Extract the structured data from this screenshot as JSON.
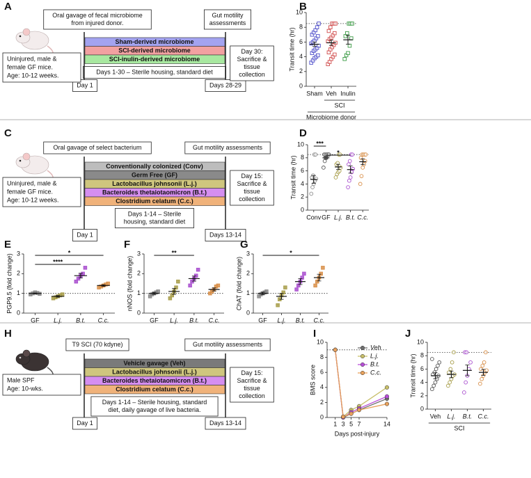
{
  "panel_labels": [
    "A",
    "B",
    "C",
    "D",
    "E",
    "F",
    "G",
    "H",
    "I",
    "J"
  ],
  "diagrams": [
    {
      "top_left": [
        "Oral gavage of fecal microbiome",
        "from injured donor."
      ],
      "top_right": [
        "Gut motility",
        "assessments"
      ],
      "mouse_box": [
        "Uninjured, male &",
        "female GF mice.",
        "Age: 10-12 weeks."
      ],
      "bars": [
        {
          "label": "Sham-derived microbiome",
          "color": "#a3a3f0"
        },
        {
          "label": "SCI-derived microbiome",
          "color": "#f2a1a1"
        },
        {
          "label": "SCI-inulin-derived microbiome",
          "color": "#a8e8a0"
        }
      ],
      "housing": [
        "Days 1-30 – Sterile housing, standard diet"
      ],
      "start": "Day 1",
      "end": "Days 28-29",
      "final": [
        "Day 30:",
        "Sacrifice &",
        "tissue",
        "collection"
      ]
    },
    {
      "top_left": [
        "Oral gavage of select bacterium"
      ],
      "top_right": [
        "Gut motility assessments"
      ],
      "mouse_box": [
        "Uninjured, male &",
        "female GF mice.",
        "Age: 10-12 weeks."
      ],
      "bars": [
        {
          "label": "Conventionally colonized (Conv)",
          "color": "#bdbdbd"
        },
        {
          "label": "Germ Free (GF)",
          "color": "#8a8a8a"
        },
        {
          "label": "Lactobacillus johnsonii (L.j.)",
          "color": "#cfc67e"
        },
        {
          "label": "Bacteroides thetaiotaomicron (B.t.)",
          "color": "#d58ef0"
        },
        {
          "label": "Clostridium celatum (C.c.)",
          "color": "#f0b27a"
        }
      ],
      "housing": [
        "Days 1-14 – Sterile",
        "housing, standard diet"
      ],
      "start": "Day 1",
      "end": "Days 13-14",
      "final": [
        "Day 15:",
        "Sacrifice &",
        "tissue",
        "collection"
      ]
    },
    {
      "top_left": [
        "T9 SCI (70 kdyne)"
      ],
      "top_right": [
        "Gut motility assessments"
      ],
      "mouse_box": [
        "Male SPF",
        "Age: 10-wks."
      ],
      "bars": [
        {
          "label": "Vehicle gavage (Veh)",
          "color": "#7a7a7a"
        },
        {
          "label": "Lactobacillus johnsonii (L.j.)",
          "color": "#cfc67e"
        },
        {
          "label": "Bacteroides thetaiotaomicron (B.t.)",
          "color": "#d58ef0"
        },
        {
          "label": "Clostridium celatum (C.c.)",
          "color": "#f0b27a"
        }
      ],
      "housing": [
        "Days 1-14 – Sterile housing, standard",
        "diet, daily gavage of live bacteria."
      ],
      "start": "Day 1",
      "end": "Days 13-14",
      "final": [
        "Day 15:",
        "Sacrifice &",
        "tissue",
        "collection"
      ]
    }
  ],
  "chart_data": [
    {
      "type": "strip",
      "y_label": "Transit time (hr)",
      "ylim": [
        0,
        10
      ],
      "yticks": [
        0,
        2,
        4,
        6,
        8,
        10
      ],
      "reference_line": 8.5,
      "marker": "square",
      "filled": false,
      "groups": [
        {
          "label": "Sham",
          "color": "#4a4ac8",
          "values": [
            3.2,
            3.5,
            3.8,
            4,
            4.2,
            4.5,
            4.8,
            5,
            5.2,
            5.5,
            5.8,
            6,
            6.2,
            6.5,
            6.8,
            7,
            7.3,
            7.6,
            8,
            8.5
          ],
          "mean": 5.7,
          "sem": 0.3
        },
        {
          "label": "Veh",
          "color": "#d04a4a",
          "values": [
            3,
            3.3,
            3.7,
            4,
            4.3,
            4.6,
            5,
            5.3,
            5.6,
            5.9,
            6.1,
            6.4,
            6.6,
            6.9,
            7.2,
            7.5,
            8,
            8.5,
            8.5,
            8.5
          ],
          "mean": 5.9,
          "sem": 0.35
        },
        {
          "label": "Inulin",
          "color": "#3a9a44",
          "values": [
            3.7,
            4.2,
            4.5,
            5.5,
            6.5,
            6.8,
            7.2,
            8.5,
            8.5,
            8.5
          ],
          "mean": 6.3,
          "sem": 0.6
        }
      ],
      "group_labels": [
        {
          "label": "SCI",
          "from": 1,
          "to": 2
        },
        {
          "label": "Microbiome donor",
          "from": 0,
          "to": 2
        }
      ]
    },
    {
      "type": "strip",
      "y_label": "Transit time (hr)",
      "ylim": [
        0,
        10
      ],
      "yticks": [
        0,
        2,
        4,
        6,
        8,
        10
      ],
      "reference_line": 8.5,
      "marker": "circle",
      "filled": false,
      "groups": [
        {
          "label": "Conv",
          "color": "#8c8c8c",
          "values": [
            2.5,
            3.5,
            4,
            4.5,
            4.8,
            5,
            5.3,
            8.5,
            8.5
          ],
          "mean": 4.7,
          "sem": 0.6
        },
        {
          "label": "GF",
          "color": "#555555",
          "values": [
            6.5,
            7.5,
            8,
            8.5,
            8.5,
            8.5,
            8.5,
            8.5,
            8.5,
            8.5
          ],
          "mean": 8.0,
          "sem": 0.2
        },
        {
          "label": "L.j.",
          "color": "#a89e4a",
          "values": [
            5,
            5.5,
            5.8,
            6,
            6.5,
            7,
            7.2,
            8.5,
            8.5
          ],
          "mean": 6.6,
          "sem": 0.4
        },
        {
          "label": "B.t.",
          "color": "#a94fcf",
          "values": [
            3.5,
            4.5,
            5,
            5.8,
            6.3,
            7,
            7.5,
            8.5,
            8.5
          ],
          "mean": 6.2,
          "sem": 0.55
        },
        {
          "label": "C.c.",
          "color": "#d9904a",
          "values": [
            4,
            5.2,
            6.5,
            7,
            7.5,
            8,
            8.5,
            8.5,
            8.5,
            8.5
          ],
          "mean": 7.4,
          "sem": 0.45
        }
      ],
      "significance": [
        {
          "label": "***",
          "from": 0,
          "to": 1
        },
        {
          "label": "*",
          "from": 1,
          "to": 3
        }
      ]
    },
    {
      "type": "strip",
      "y_label": "PGP9.5 (fold change)",
      "ylim": [
        0,
        3
      ],
      "yticks": [
        0,
        1,
        2,
        3
      ],
      "reference_line": 1,
      "marker": "square",
      "filled": true,
      "groups": [
        {
          "label": "GF",
          "color": "#888888",
          "values": [
            0.95,
            1.0,
            1.05,
            1.02,
            0.98
          ],
          "mean": 1.0,
          "sem": 0.02
        },
        {
          "label": "L.j.",
          "color": "#a89e4a",
          "values": [
            0.75,
            0.8,
            0.85,
            0.9,
            0.95
          ],
          "mean": 0.85,
          "sem": 0.04
        },
        {
          "label": "B.t.",
          "color": "#a94fcf",
          "values": [
            1.6,
            1.75,
            1.9,
            2.0,
            2.3
          ],
          "mean": 1.9,
          "sem": 0.12
        },
        {
          "label": "C.c.",
          "color": "#d9904a",
          "values": [
            1.3,
            1.35,
            1.4,
            1.45,
            1.5
          ],
          "mean": 1.4,
          "sem": 0.04
        }
      ],
      "significance": [
        {
          "label": "*",
          "from": 0,
          "to": 3
        },
        {
          "label": "****",
          "from": 0,
          "to": 2
        }
      ]
    },
    {
      "type": "strip",
      "y_label": "nNOS (fold change)",
      "ylim": [
        0,
        3
      ],
      "yticks": [
        0,
        1,
        2,
        3
      ],
      "reference_line": 1,
      "marker": "square",
      "filled": true,
      "groups": [
        {
          "label": "GF",
          "color": "#888888",
          "values": [
            0.85,
            0.95,
            1.0,
            1.05,
            1.1
          ],
          "mean": 1.0,
          "sem": 0.05
        },
        {
          "label": "L.j.",
          "color": "#a89e4a",
          "values": [
            0.75,
            0.9,
            1.1,
            1.3,
            1.6
          ],
          "mean": 1.1,
          "sem": 0.15
        },
        {
          "label": "B.t.",
          "color": "#a94fcf",
          "values": [
            1.4,
            1.6,
            1.75,
            1.9,
            2.2
          ],
          "mean": 1.75,
          "sem": 0.13
        },
        {
          "label": "C.c.",
          "color": "#d9904a",
          "values": [
            1.0,
            1.1,
            1.2,
            1.35,
            1.4
          ],
          "mean": 1.2,
          "sem": 0.08
        }
      ],
      "significance": [
        {
          "label": "**",
          "from": 0,
          "to": 2
        }
      ]
    },
    {
      "type": "strip",
      "y_label": "ChAT (fold change)",
      "ylim": [
        0,
        3
      ],
      "yticks": [
        0,
        1,
        2,
        3
      ],
      "reference_line": 1,
      "marker": "square",
      "filled": true,
      "groups": [
        {
          "label": "GF",
          "color": "#888888",
          "values": [
            0.85,
            0.95,
            1.0,
            1.05,
            1.1
          ],
          "mean": 1.0,
          "sem": 0.06
        },
        {
          "label": "L.j.",
          "color": "#a89e4a",
          "values": [
            0.4,
            0.7,
            0.9,
            1.05,
            1.3
          ],
          "mean": 0.85,
          "sem": 0.15
        },
        {
          "label": "B.t.",
          "color": "#a94fcf",
          "values": [
            1.2,
            1.4,
            1.6,
            1.8,
            2.0
          ],
          "mean": 1.6,
          "sem": 0.15
        },
        {
          "label": "C.c.",
          "color": "#d9904a",
          "values": [
            1.4,
            1.6,
            1.8,
            2.0,
            2.3
          ],
          "mean": 1.8,
          "sem": 0.17
        }
      ],
      "significance": [
        {
          "label": "*",
          "from": 0,
          "to": 3
        }
      ]
    },
    {
      "type": "line",
      "y_label": "BMS score",
      "x_label": "Days post-injury",
      "ylim": [
        0,
        10
      ],
      "yticks": [
        0,
        2,
        4,
        6,
        8,
        10
      ],
      "xlim": [
        0,
        14
      ],
      "xticks": [
        1,
        3,
        5,
        7,
        14
      ],
      "reference_line": 9,
      "x": [
        1,
        3,
        5,
        7,
        14
      ],
      "legend": "upper-right",
      "series": [
        {
          "name": "Veh",
          "color": "#6f6f6f",
          "values": [
            9,
            0,
            0.5,
            1,
            2.5
          ]
        },
        {
          "name": "L.j.",
          "color": "#c8bf6a",
          "values": [
            9,
            0.1,
            1,
            1.5,
            4
          ]
        },
        {
          "name": "B.t.",
          "color": "#b84fd8",
          "values": [
            9,
            0,
            0.7,
            1.2,
            2.8
          ]
        },
        {
          "name": "C.c.",
          "color": "#e8a15c",
          "values": [
            9,
            0.1,
            0.5,
            1,
            1.8
          ]
        }
      ]
    },
    {
      "type": "strip",
      "y_label": "Transit time (hr)",
      "ylim": [
        0,
        10
      ],
      "yticks": [
        0,
        2,
        4,
        6,
        8,
        10
      ],
      "reference_line": 8.5,
      "marker": "circle",
      "filled": false,
      "groups": [
        {
          "label": "Veh",
          "color": "#555555",
          "values": [
            3,
            3.5,
            4,
            4.5,
            5,
            5.2,
            5.5,
            6,
            6.5,
            7,
            7.5
          ],
          "mean": 5,
          "sem": 0.45
        },
        {
          "label": "L.j.",
          "color": "#a89e4a",
          "values": [
            3.5,
            4,
            4.5,
            5,
            5.2,
            5.5,
            6,
            7,
            8.5
          ],
          "mean": 5.2,
          "sem": 0.5
        },
        {
          "label": "B.t.",
          "color": "#a94fcf",
          "values": [
            2.5,
            4,
            5,
            6,
            7,
            8.5,
            8.5
          ],
          "mean": 5.8,
          "sem": 0.8
        },
        {
          "label": "C.c.",
          "color": "#d9904a",
          "values": [
            3.8,
            4.5,
            5,
            5.5,
            5.8,
            6,
            6.5,
            7,
            8.5
          ],
          "mean": 5.5,
          "sem": 0.45
        }
      ],
      "group_labels": [
        {
          "label": "SCI",
          "from": 0,
          "to": 3
        }
      ]
    }
  ]
}
